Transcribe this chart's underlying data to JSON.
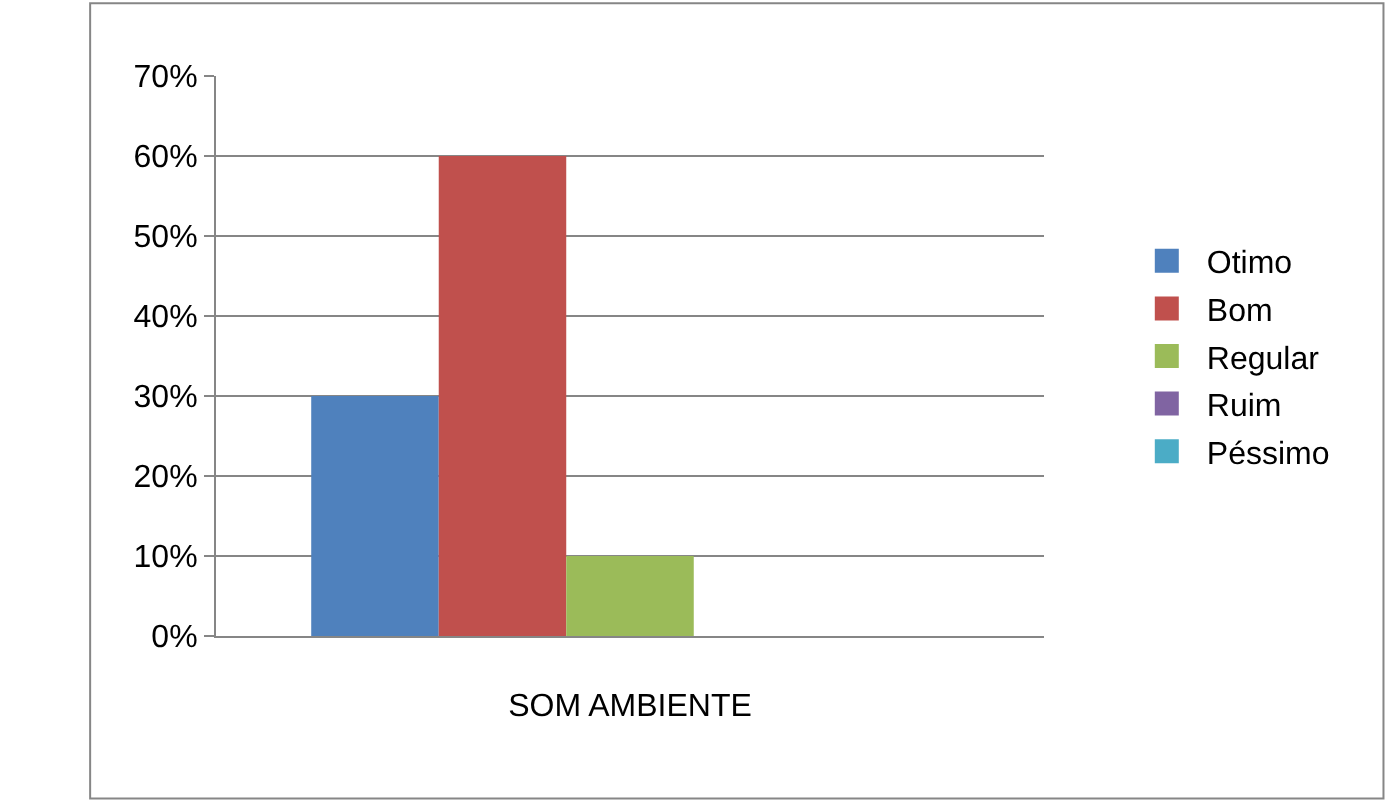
{
  "chart_data": {
    "type": "bar",
    "categories": [
      "SOM AMBIENTE"
    ],
    "series": [
      {
        "name": "Otimo",
        "color": "#4f81bd",
        "values": [
          30
        ]
      },
      {
        "name": "Bom",
        "color": "#c0504d",
        "values": [
          60
        ]
      },
      {
        "name": "Regular",
        "color": "#9bbb59",
        "values": [
          10
        ]
      },
      {
        "name": "Ruim",
        "color": "#8064a2",
        "values": [
          0
        ]
      },
      {
        "name": "Péssimo",
        "color": "#4bacc6",
        "values": [
          0
        ]
      }
    ],
    "ylim": [
      0,
      70
    ],
    "yticks": [
      {
        "value": 0,
        "label": "0%"
      },
      {
        "value": 10,
        "label": "10%"
      },
      {
        "value": 20,
        "label": "20%"
      },
      {
        "value": 30,
        "label": "30%"
      },
      {
        "value": 40,
        "label": "40%"
      },
      {
        "value": 50,
        "label": "50%"
      },
      {
        "value": 60,
        "label": "60%"
      },
      {
        "value": 70,
        "label": "70%"
      }
    ],
    "grid": "y",
    "legend": "right"
  }
}
